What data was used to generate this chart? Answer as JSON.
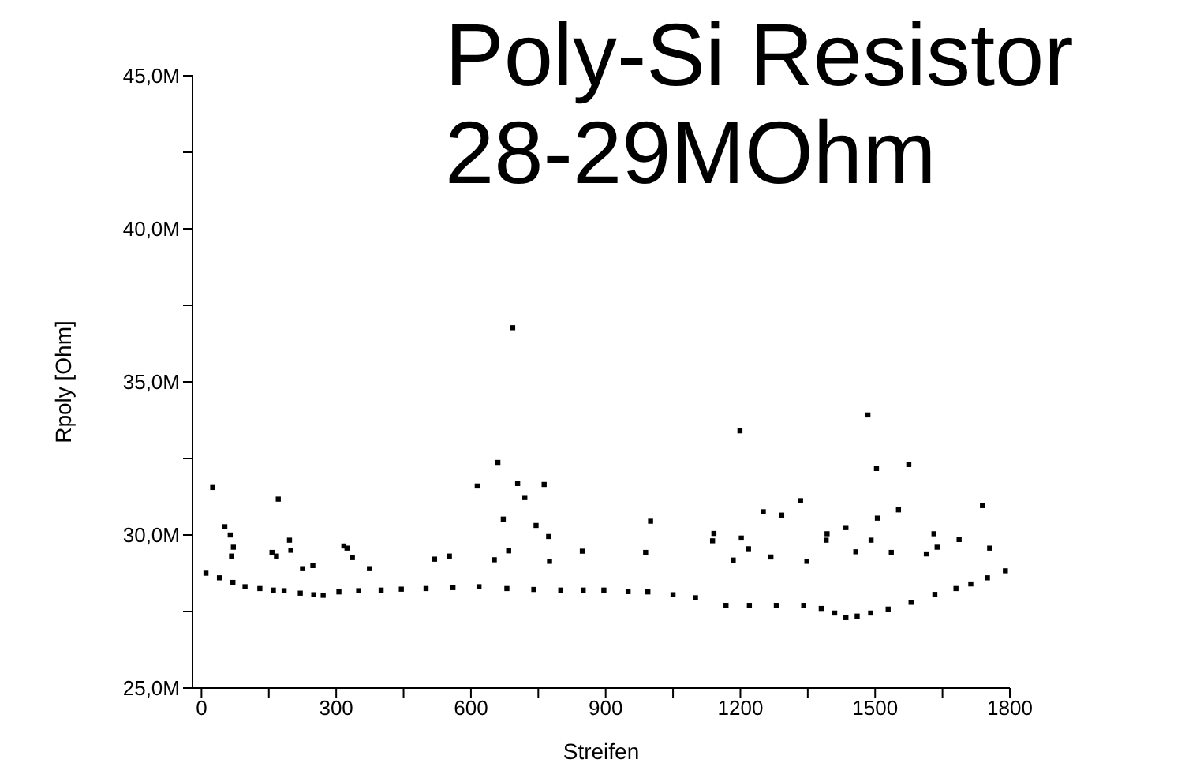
{
  "chart_data": {
    "type": "scatter",
    "title": "Poly-Si Resistor 28-29MOhm",
    "xlabel": "Streifen",
    "ylabel": "Rpoly [Ohm]",
    "xlim": [
      -20,
      1800
    ],
    "ylim": [
      25,
      45
    ],
    "xticks": [
      0,
      {
        "value": 150,
        "label": null
      },
      300,
      {
        "value": 450,
        "label": null
      },
      600,
      {
        "value": 750,
        "label": null
      },
      900,
      {
        "value": 1050,
        "label": null
      },
      1200,
      {
        "value": 1350,
        "label": null
      },
      1500,
      {
        "value": 1650,
        "label": null
      },
      1800
    ],
    "yticks": [
      {
        "value": 25,
        "label": "25,0M"
      },
      {
        "value": 27.5,
        "label": null
      },
      {
        "value": 30,
        "label": "30,0M"
      },
      {
        "value": 32.5,
        "label": null
      },
      {
        "value": 35,
        "label": "35,0M"
      },
      {
        "value": 37.5,
        "label": null
      },
      {
        "value": 40,
        "label": "40,0M"
      },
      {
        "value": 42.5,
        "label": null
      },
      {
        "value": 45,
        "label": "45,0M"
      }
    ],
    "grid": false,
    "marker": "square",
    "series": [
      {
        "color": "#000000",
        "x": [
          10,
          40,
          70,
          97,
          130,
          160,
          184,
          220,
          250,
          271,
          306,
          350,
          400,
          445,
          500,
          560,
          618,
          680,
          740,
          800,
          850,
          896,
          950,
          994,
          1050,
          1100,
          1168,
          1220,
          1280,
          1341,
          1380,
          1410,
          1435,
          1460,
          1490,
          1529,
          1580,
          1633,
          1680,
          1713,
          1750,
          1790,
          25,
          52,
          64,
          71,
          67,
          171,
          157,
          167,
          196,
          199,
          225,
          317,
          324,
          336,
          374,
          519,
          552,
          614,
          660,
          672,
          684,
          693,
          704,
          720,
          745,
          763,
          773,
          775,
          848,
          652,
          248,
          1000,
          989,
          1199,
          1141,
          1138,
          1202,
          1218,
          1184,
          1251,
          1292,
          1334,
          1268,
          1393,
          1391,
          1435,
          1484,
          1503,
          1505,
          1491,
          1575,
          1552,
          1536,
          1631,
          1638,
          1687,
          1739,
          1755,
          1457,
          1348,
          1614
        ],
        "values": [
          28.75,
          28.6,
          28.45,
          28.31,
          28.25,
          28.2,
          28.18,
          28.1,
          28.05,
          28.03,
          28.14,
          28.18,
          28.2,
          28.23,
          28.25,
          28.28,
          28.31,
          28.25,
          28.22,
          28.2,
          28.2,
          28.2,
          28.15,
          28.14,
          28.05,
          27.95,
          27.7,
          27.7,
          27.7,
          27.7,
          27.6,
          27.45,
          27.3,
          27.35,
          27.45,
          27.58,
          27.8,
          28.06,
          28.25,
          28.4,
          28.6,
          28.83,
          31.55,
          30.27,
          30.0,
          29.6,
          29.31,
          31.17,
          29.43,
          29.31,
          29.83,
          29.5,
          28.9,
          29.64,
          29.57,
          29.26,
          28.9,
          29.21,
          29.31,
          31.6,
          32.37,
          30.52,
          29.48,
          36.77,
          31.68,
          31.22,
          30.31,
          31.65,
          29.95,
          29.14,
          29.47,
          29.19,
          29.0,
          30.45,
          29.43,
          33.4,
          30.05,
          29.81,
          29.9,
          29.55,
          29.18,
          30.76,
          30.65,
          31.12,
          29.28,
          30.04,
          29.83,
          30.24,
          33.92,
          32.17,
          30.55,
          29.83,
          32.3,
          30.82,
          29.43,
          30.04,
          29.6,
          29.85,
          30.96,
          29.57,
          29.45,
          29.14,
          29.38
        ]
      }
    ]
  }
}
